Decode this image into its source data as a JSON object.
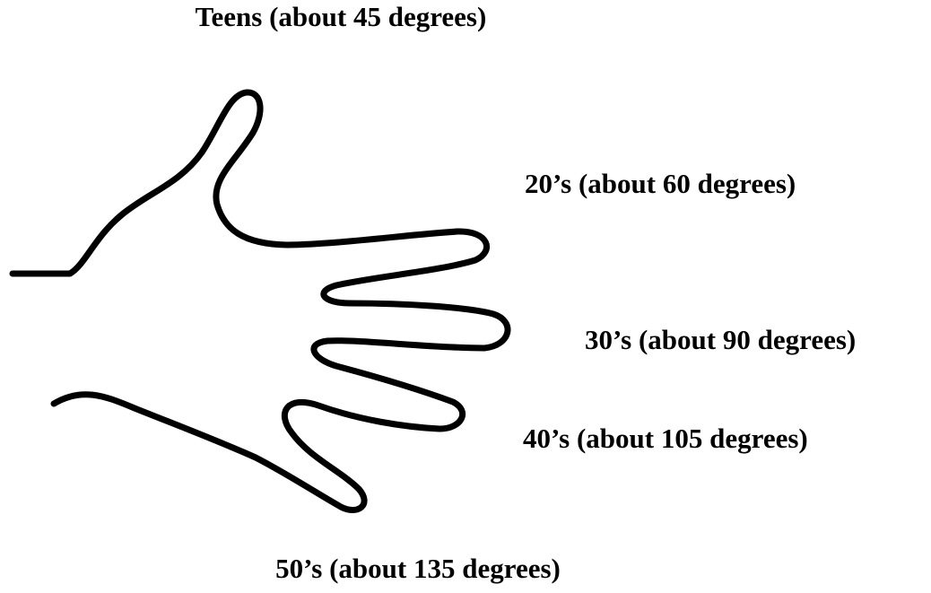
{
  "labels": [
    "Teens (about 45 degrees)",
    "20’s (about 60 degrees)",
    "30’s (about 90 degrees)",
    "40’s (about 105 degrees)",
    "50’s (about 135 degrees)"
  ]
}
